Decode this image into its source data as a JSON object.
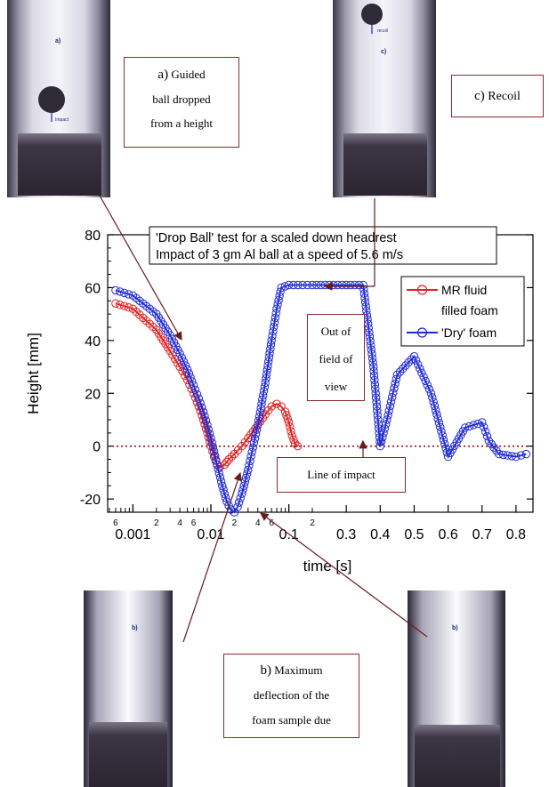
{
  "photos": [
    {
      "label": "a)",
      "annotation": "Impact"
    },
    {
      "label": "c)",
      "annotation": "recoil"
    },
    {
      "label": "b)",
      "annotation": ""
    },
    {
      "label": "b)",
      "annotation": ""
    }
  ],
  "captions": {
    "a_letter": "a)",
    "a_rest": " Guided",
    "a_line2": "ball dropped",
    "a_line3": "from a height",
    "c_letter": "c)",
    "c_rest": " Recoil",
    "b_letter": "b)",
    "b_rest": " Maximum",
    "b_line2": "deflection of the",
    "b_line3": "foam sample due",
    "out_line1": "Out of",
    "out_line2": "field of",
    "out_line3": "view",
    "impact_line": "Line of impact"
  },
  "chart_data": {
    "type": "line",
    "title": [
      "'Drop Ball' test for a scaled down headrest",
      "Impact of 3 gm Al ball at a speed of 5.6 m/s"
    ],
    "xlabel": "time [s]",
    "ylabel": "Height [mm]",
    "ylim": [
      -25,
      80
    ],
    "yticks": [
      -20,
      0,
      20,
      40,
      60,
      80
    ],
    "x_log_ticks_major": [
      "0.001",
      "0.01",
      "0.1"
    ],
    "x_log_ticks_minor": [
      "6",
      "2",
      "4",
      "6",
      "2",
      "4",
      "6",
      "2"
    ],
    "x_linear_ticks": [
      "0.3",
      "0.4",
      "0.5",
      "0.6",
      "0.7",
      "0.8"
    ],
    "legend_placement": "top-right",
    "reference_line": {
      "y": 0,
      "style": "dotted",
      "color": "#8b0000"
    },
    "series": [
      {
        "name": "MR fluid filled foam",
        "color": "#e02020",
        "x": [
          0.0006,
          0.001,
          0.002,
          0.003,
          0.004,
          0.005,
          0.006,
          0.007,
          0.008,
          0.009,
          0.01,
          0.011,
          0.012,
          0.013,
          0.015,
          0.017,
          0.02,
          0.025,
          0.03,
          0.04,
          0.05,
          0.06,
          0.07,
          0.08,
          0.09,
          0.1,
          0.11,
          0.12,
          0.13
        ],
        "y": [
          54,
          52,
          44,
          36,
          30,
          25,
          20,
          15,
          10,
          5,
          0,
          -4,
          -7,
          -8,
          -7,
          -5,
          -3,
          0,
          3,
          8,
          12,
          15,
          16,
          15,
          13,
          9,
          4,
          1,
          0
        ]
      },
      {
        "name": "'Dry' foam",
        "color": "#1f2ad4",
        "x": [
          0.0006,
          0.001,
          0.002,
          0.003,
          0.004,
          0.005,
          0.006,
          0.007,
          0.008,
          0.009,
          0.01,
          0.011,
          0.012,
          0.014,
          0.016,
          0.018,
          0.02,
          0.022,
          0.025,
          0.03,
          0.04,
          0.05,
          0.06,
          0.07,
          0.08,
          0.1,
          0.15,
          0.2,
          0.25,
          0.3,
          0.35,
          0.38,
          0.4,
          0.42,
          0.45,
          0.5,
          0.55,
          0.6,
          0.65,
          0.7,
          0.72,
          0.75,
          0.8,
          0.83
        ],
        "y": [
          59,
          57,
          50,
          42,
          35,
          29,
          23,
          18,
          13,
          8,
          3,
          -2,
          -7,
          -15,
          -21,
          -24,
          -25,
          -23,
          -18,
          -9,
          8,
          24,
          40,
          52,
          60,
          61,
          61,
          61,
          61,
          61,
          61,
          30,
          0,
          10,
          27,
          34,
          20,
          -4,
          7,
          9,
          2,
          -3,
          -4,
          -3
        ]
      }
    ]
  }
}
